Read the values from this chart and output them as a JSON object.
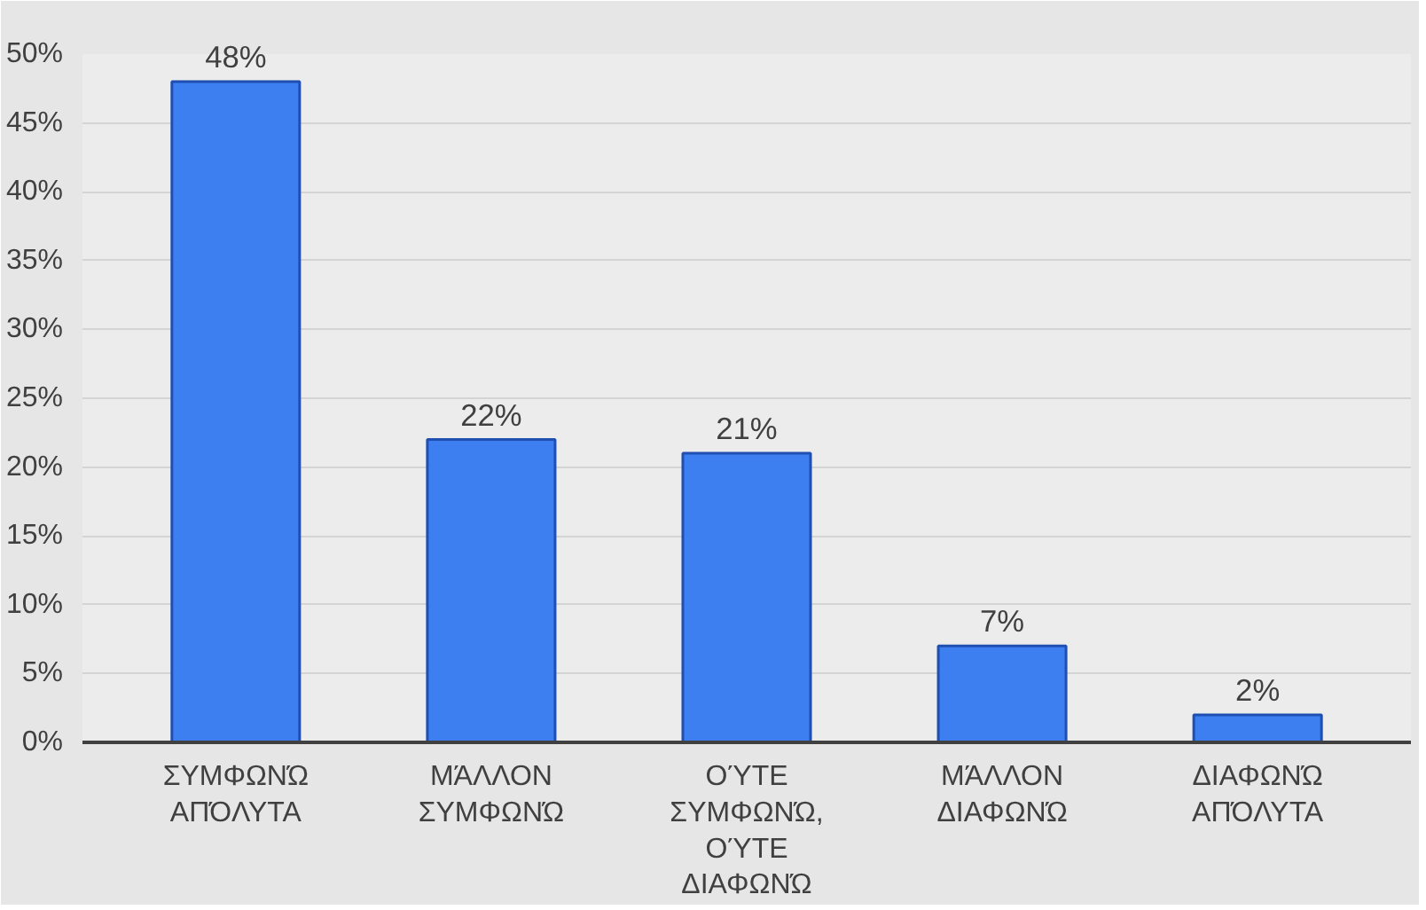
{
  "chart_data": {
    "type": "bar",
    "categories": [
      "ΣΥΜΦΩΝΏ ΑΠΌΛΥΤΑ",
      "ΜΆΛΛΟΝ ΣΥΜΦΩΝΏ",
      "ΟΎΤΕ ΣΥΜΦΩΝΏ, ΟΎΤΕ ΔΙΑΦΩΝΏ",
      "ΜΆΛΛΟΝ ΔΙΑΦΩΝΏ",
      "ΔΙΑΦΩΝΏ ΑΠΌΛΥΤΑ"
    ],
    "values": [
      48,
      22,
      21,
      7,
      2
    ],
    "value_labels": [
      "48%",
      "22%",
      "21%",
      "7%",
      "2%"
    ],
    "color": "#3d7ef0",
    "ylim": [
      0,
      50
    ],
    "yticks": [
      {
        "value": 0,
        "label": "0%"
      },
      {
        "value": 5,
        "label": "5%"
      },
      {
        "value": 10,
        "label": "10%"
      },
      {
        "value": 15,
        "label": "15%"
      },
      {
        "value": 20,
        "label": "20%"
      },
      {
        "value": 25,
        "label": "25%"
      },
      {
        "value": 30,
        "label": "30%"
      },
      {
        "value": 35,
        "label": "35%"
      },
      {
        "value": 40,
        "label": "40%"
      },
      {
        "value": 45,
        "label": "45%"
      },
      {
        "value": 50,
        "label": "50%"
      }
    ],
    "grid": "y"
  }
}
